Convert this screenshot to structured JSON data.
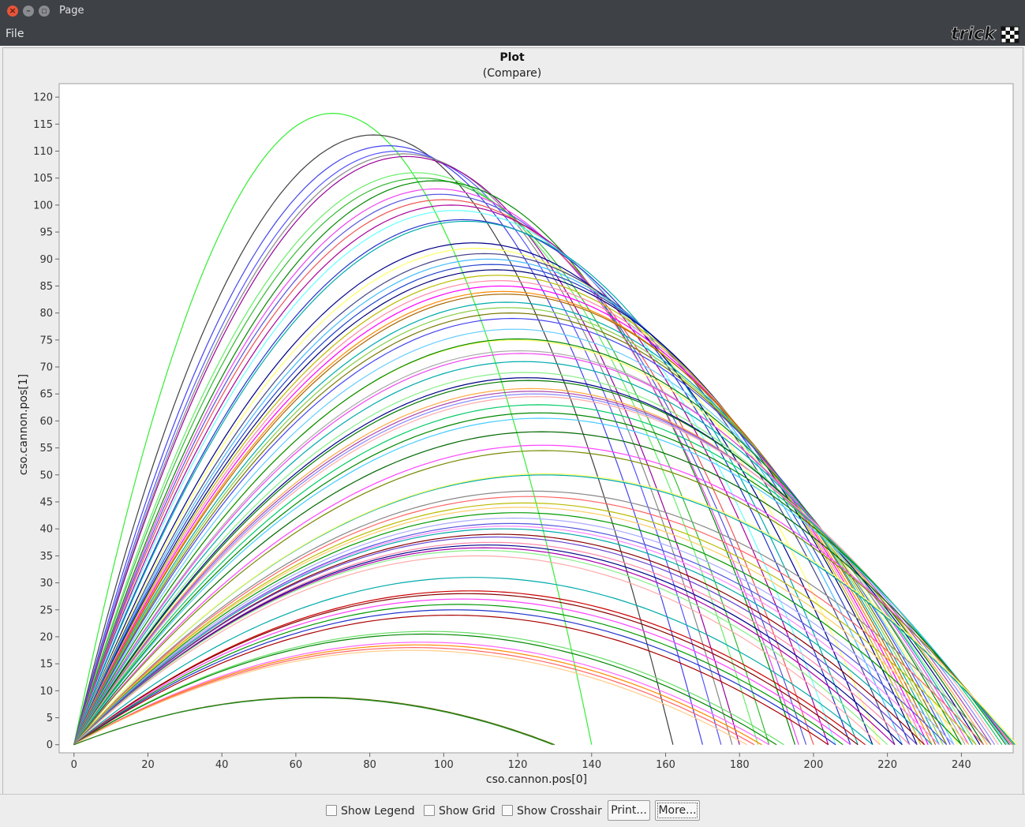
{
  "window": {
    "title": "Page"
  },
  "menu": {
    "file_label": "File"
  },
  "logo": {
    "text": "trick"
  },
  "controls": {
    "show_legend": "Show Legend",
    "show_grid": "Show Grid",
    "show_crosshair": "Show Crosshair",
    "print_label": "Print...",
    "more_label": "More..."
  },
  "chart_data": {
    "type": "line",
    "title": "Plot",
    "subtitle": "(Compare)",
    "xlabel": "cso.cannon.pos[0]",
    "ylabel": "cso.cannon.pos[1]",
    "xlim": [
      -4,
      254
    ],
    "ylim": [
      -1.5,
      122.5
    ],
    "xticks": [
      0,
      20,
      40,
      60,
      80,
      100,
      120,
      140,
      160,
      180,
      200,
      220,
      240
    ],
    "yticks": [
      0,
      5,
      10,
      15,
      20,
      25,
      30,
      35,
      40,
      45,
      50,
      55,
      60,
      65,
      70,
      75,
      80,
      85,
      90,
      95,
      100,
      105,
      110,
      115,
      120
    ],
    "grid": false,
    "legend": false,
    "series_shape": "parabolic trajectories from (0,0); each series given by range (x where y returns to 0) and apex height",
    "series": [
      {
        "range": 140,
        "apex": 117,
        "color": "#33ee33"
      },
      {
        "range": 162,
        "apex": 113,
        "color": "#404040"
      },
      {
        "range": 170,
        "apex": 111,
        "color": "#4444ee"
      },
      {
        "range": 175,
        "apex": 110,
        "color": "#5555ff"
      },
      {
        "range": 178,
        "apex": 109.5,
        "color": "#888888"
      },
      {
        "range": 180,
        "apex": 109,
        "color": "#990099"
      },
      {
        "range": 185,
        "apex": 106,
        "color": "#66ee66"
      },
      {
        "range": 188,
        "apex": 105,
        "color": "#33bb33"
      },
      {
        "range": 195,
        "apex": 104.5,
        "color": "#008800"
      },
      {
        "range": 196,
        "apex": 103,
        "color": "#ee44ee"
      },
      {
        "range": 198,
        "apex": 102,
        "color": "#5555dd"
      },
      {
        "range": 200,
        "apex": 101,
        "color": "#ee5555"
      },
      {
        "range": 204,
        "apex": 100,
        "color": "#aa0099"
      },
      {
        "range": 206,
        "apex": 99,
        "color": "#66ffff"
      },
      {
        "range": 210,
        "apex": 97.3,
        "color": "#2233cc"
      },
      {
        "range": 212,
        "apex": 97,
        "color": "#00aaaa"
      },
      {
        "range": 216,
        "apex": 93,
        "color": "#000088"
      },
      {
        "range": 218,
        "apex": 92,
        "color": "#ffff66"
      },
      {
        "range": 222,
        "apex": 91,
        "color": "#444488"
      },
      {
        "range": 224,
        "apex": 90,
        "color": "#44bbff"
      },
      {
        "range": 226,
        "apex": 89,
        "color": "#2244cc"
      },
      {
        "range": 228,
        "apex": 88,
        "color": "#000077"
      },
      {
        "range": 229,
        "apex": 87,
        "color": "#bbbb00"
      },
      {
        "range": 230,
        "apex": 86,
        "color": "#ff88aa"
      },
      {
        "range": 231,
        "apex": 85,
        "color": "#ff00ff"
      },
      {
        "range": 232,
        "apex": 84,
        "color": "#ff8800"
      },
      {
        "range": 233,
        "apex": 83.5,
        "color": "#aa6600"
      },
      {
        "range": 234,
        "apex": 82,
        "color": "#00aaaa"
      },
      {
        "range": 235,
        "apex": 81,
        "color": "#88cc44"
      },
      {
        "range": 236,
        "apex": 80,
        "color": "#777700"
      },
      {
        "range": 237,
        "apex": 79,
        "color": "#4444ee"
      },
      {
        "range": 238,
        "apex": 77,
        "color": "#66ccff"
      },
      {
        "range": 239,
        "apex": 75,
        "color": "#ffff66"
      },
      {
        "range": 240,
        "apex": 75.2,
        "color": "#008800"
      },
      {
        "range": 241,
        "apex": 73,
        "color": "#aaaaaa"
      },
      {
        "range": 242,
        "apex": 72.5,
        "color": "#ee44ee"
      },
      {
        "range": 243,
        "apex": 71,
        "color": "#00aaaa"
      },
      {
        "range": 244,
        "apex": 69,
        "color": "#88ee88"
      },
      {
        "range": 245,
        "apex": 68,
        "color": "#000088"
      },
      {
        "range": 246,
        "apex": 67.5,
        "color": "#007700"
      },
      {
        "range": 247,
        "apex": 66,
        "color": "#ffaa44"
      },
      {
        "range": 248,
        "apex": 65.5,
        "color": "#aa44aa"
      },
      {
        "range": 249,
        "apex": 65,
        "color": "#8888ff"
      },
      {
        "range": 250,
        "apex": 64.5,
        "color": "#ffaaaa"
      },
      {
        "range": 251,
        "apex": 63,
        "color": "#00cc66"
      },
      {
        "range": 252,
        "apex": 61.5,
        "color": "#008800"
      },
      {
        "range": 252.5,
        "apex": 60.5,
        "color": "#44ccff"
      },
      {
        "range": 253,
        "apex": 58,
        "color": "#006600"
      },
      {
        "range": 253.5,
        "apex": 55.5,
        "color": "#ff44ff"
      },
      {
        "range": 254,
        "apex": 54.5,
        "color": "#778800"
      },
      {
        "range": 254.5,
        "apex": 50,
        "color": "#00aaaa"
      },
      {
        "range": 255,
        "apex": 50.2,
        "color": "#ffff66"
      },
      {
        "range": 248,
        "apex": 47,
        "color": "#888888"
      },
      {
        "range": 246,
        "apex": 46,
        "color": "#ff6666"
      },
      {
        "range": 244,
        "apex": 44.8,
        "color": "#bbbb00"
      },
      {
        "range": 242,
        "apex": 44,
        "color": "#ffcc66"
      },
      {
        "range": 240,
        "apex": 43,
        "color": "#009900"
      },
      {
        "range": 238,
        "apex": 42,
        "color": "#aaaaff"
      },
      {
        "range": 236,
        "apex": 41,
        "color": "#5555dd"
      },
      {
        "range": 234,
        "apex": 40.5,
        "color": "#ff88ff"
      },
      {
        "range": 232,
        "apex": 40,
        "color": "#00aaaa"
      },
      {
        "range": 230,
        "apex": 39,
        "color": "#880000"
      },
      {
        "range": 228,
        "apex": 38.5,
        "color": "#6644cc"
      },
      {
        "range": 226,
        "apex": 37.5,
        "color": "#ff88aa"
      },
      {
        "range": 224,
        "apex": 37,
        "color": "#000088"
      },
      {
        "range": 222,
        "apex": 36.5,
        "color": "#aa00aa"
      },
      {
        "range": 220,
        "apex": 36,
        "color": "#88ee88"
      },
      {
        "range": 218,
        "apex": 35,
        "color": "#ffaaaa"
      },
      {
        "range": 216,
        "apex": 31,
        "color": "#00aaaa"
      },
      {
        "range": 214,
        "apex": 28.5,
        "color": "#cc0000"
      },
      {
        "range": 212,
        "apex": 28,
        "color": "#880000"
      },
      {
        "range": 210,
        "apex": 27,
        "color": "#ff44ff"
      },
      {
        "range": 208,
        "apex": 26,
        "color": "#009900"
      },
      {
        "range": 206,
        "apex": 25,
        "color": "#2233cc"
      },
      {
        "range": 204,
        "apex": 24,
        "color": "#aa0000"
      },
      {
        "range": 192,
        "apex": 21,
        "color": "#66dd66"
      },
      {
        "range": 190,
        "apex": 20.5,
        "color": "#008800"
      },
      {
        "range": 188,
        "apex": 19,
        "color": "#ff66ff"
      },
      {
        "range": 186,
        "apex": 18.5,
        "color": "#ff8800"
      },
      {
        "range": 184,
        "apex": 18,
        "color": "#ff6666"
      },
      {
        "range": 182,
        "apex": 17.5,
        "color": "#ffcc88"
      },
      {
        "range": 130,
        "apex": 8.8,
        "color": "#556b00"
      },
      {
        "range": 129.5,
        "apex": 8.7,
        "color": "#228822"
      }
    ]
  }
}
